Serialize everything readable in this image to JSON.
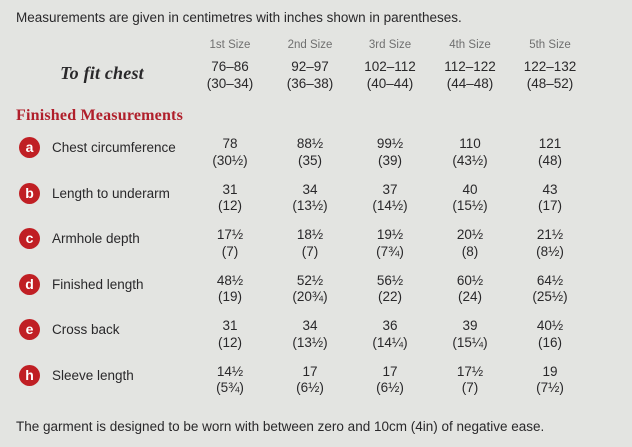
{
  "colors": {
    "background": "#e3e4e1",
    "accent_red": "#c01f24",
    "heading_red": "#b01f2b",
    "text": "#29282a",
    "muted": "#6f6f6f"
  },
  "page": {
    "intro": "Measurements are given in centimetres with inches shown in parentheses.",
    "footer": "The garment is designed to be worn with between zero and 10cm (4in) of negative ease."
  },
  "table": {
    "size_headers": [
      "1st Size",
      "2nd Size",
      "3rd Size",
      "4th Size",
      "5th Size"
    ],
    "to_fit": {
      "label": "To fit chest",
      "cm": [
        "76–86",
        "92–97",
        "102–112",
        "112–122",
        "122–132"
      ],
      "in": [
        "(30–34)",
        "(36–38)",
        "(40–44)",
        "(44–48)",
        "(48–52)"
      ]
    },
    "section_heading": "Finished Measurements",
    "rows": [
      {
        "key": "a",
        "label": "Chest circumference",
        "cm": [
          "78",
          "88½",
          "99½",
          "110",
          "121"
        ],
        "in": [
          "(30½)",
          "(35)",
          "(39)",
          "(43½)",
          "(48)"
        ]
      },
      {
        "key": "b",
        "label": "Length to underarm",
        "cm": [
          "31",
          "34",
          "37",
          "40",
          "43"
        ],
        "in": [
          "(12)",
          "(13½)",
          "(14½)",
          "(15½)",
          "(17)"
        ]
      },
      {
        "key": "c",
        "label": "Armhole depth",
        "cm": [
          "17½",
          "18½",
          "19½",
          "20½",
          "21½"
        ],
        "in": [
          "(7)",
          "(7)",
          "(7¾)",
          "(8)",
          "(8½)"
        ]
      },
      {
        "key": "d",
        "label": "Finished length",
        "cm": [
          "48½",
          "52½",
          "56½",
          "60½",
          "64½"
        ],
        "in": [
          "(19)",
          "(20¾)",
          "(22)",
          "(24)",
          "(25½)"
        ]
      },
      {
        "key": "e",
        "label": "Cross back",
        "cm": [
          "31",
          "34",
          "36",
          "39",
          "40½"
        ],
        "in": [
          "(12)",
          "(13½)",
          "(14¼)",
          "(15¼)",
          "(16)"
        ]
      },
      {
        "key": "h",
        "label": "Sleeve length",
        "cm": [
          "14½",
          "17",
          "17",
          "17½",
          "19"
        ],
        "in": [
          "(5¾)",
          "(6½)",
          "(6½)",
          "(7)",
          "(7½)"
        ]
      }
    ]
  }
}
